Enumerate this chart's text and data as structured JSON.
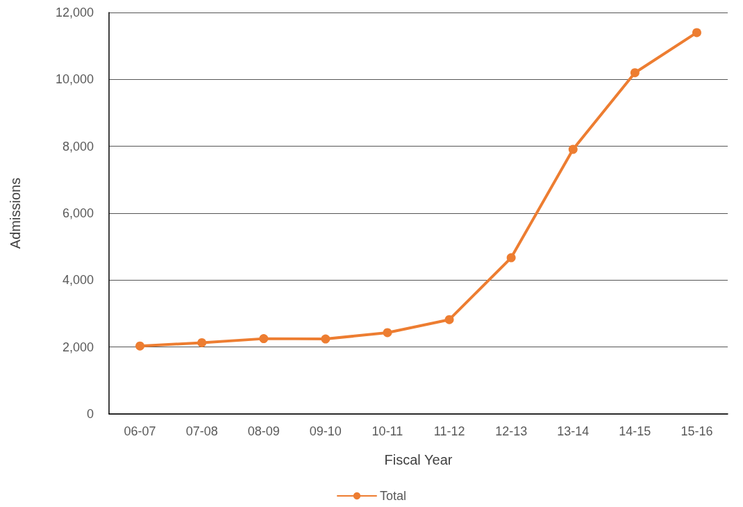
{
  "chart_data": {
    "type": "line",
    "xlabel": "Fiscal Year",
    "ylabel": "Admissions",
    "categories": [
      "06-07",
      "07-08",
      "08-09",
      "09-10",
      "10-11",
      "11-12",
      "12-13",
      "13-14",
      "14-15",
      "15-16"
    ],
    "series": [
      {
        "name": "Total",
        "color": "#ed7d31",
        "values": [
          2030,
          2130,
          2250,
          2240,
          2430,
          2820,
          4670,
          7910,
          10200,
          11400
        ]
      }
    ],
    "ylim": [
      0,
      12000
    ],
    "yticks": [
      0,
      {
        "value": 2000,
        "label": "2,000"
      },
      {
        "value": 4000,
        "label": "4,000"
      },
      {
        "value": 6000,
        "label": "6,000"
      },
      {
        "value": 8000,
        "label": "8,000"
      },
      {
        "value": 10000,
        "label": "10,000"
      },
      {
        "value": 12000,
        "label": "12,000"
      }
    ],
    "grid": "y",
    "legend": "bottom",
    "marker": "circle",
    "line_style": "solid"
  }
}
